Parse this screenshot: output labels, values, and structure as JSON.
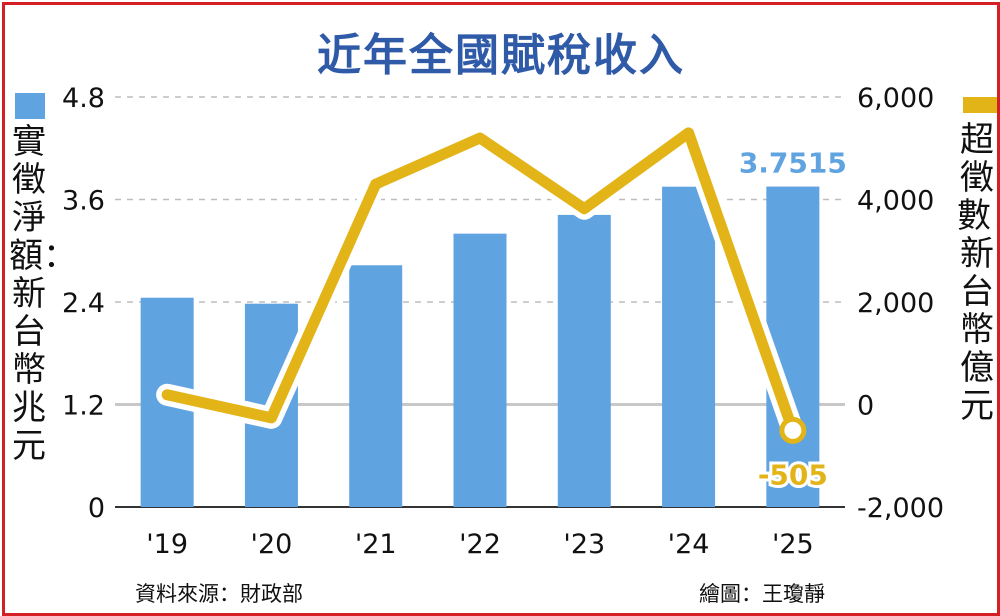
{
  "title": "近年全國賦稅收入",
  "source": "資料來源：財政部",
  "credit": "繪圖：王瓊靜",
  "colors": {
    "bar": "#5fa3e0",
    "line": "#e3b418",
    "title": "#2f5aa7",
    "border": "#d51f26"
  },
  "chart_data": {
    "type": "bar",
    "categories": [
      "'19",
      "'20",
      "'21",
      "'22",
      "'23",
      "'24",
      "'25"
    ],
    "series": [
      {
        "name": "實徵淨額：新台幣兆元",
        "type": "bar",
        "axis": "left",
        "values": [
          2.45,
          2.38,
          2.83,
          3.2,
          3.42,
          3.75,
          3.7515
        ]
      },
      {
        "name": "超徵數：新台幣億元",
        "type": "line",
        "axis": "right",
        "values": [
          190,
          -260,
          4300,
          5200,
          3820,
          5300,
          -505
        ]
      }
    ],
    "left_axis": {
      "label": "實徵淨額：新台幣兆元",
      "min": 0,
      "max": 4.8,
      "ticks": [
        "0",
        "1.2",
        "2.4",
        "3.6",
        "4.8"
      ]
    },
    "right_axis": {
      "label": "超徵數：新台幣億元",
      "min": -2000,
      "max": 6000,
      "ticks": [
        "-2,000",
        "0",
        "2,000",
        "4,000",
        "6,000"
      ]
    },
    "annotations": [
      {
        "text": "3.7515",
        "category": "'25",
        "series": "實徵淨額：新台幣兆元"
      },
      {
        "text": "-505",
        "category": "'25",
        "series": "超徵數：新台幣億元"
      }
    ],
    "grid": true,
    "legend": "axis-labels"
  }
}
